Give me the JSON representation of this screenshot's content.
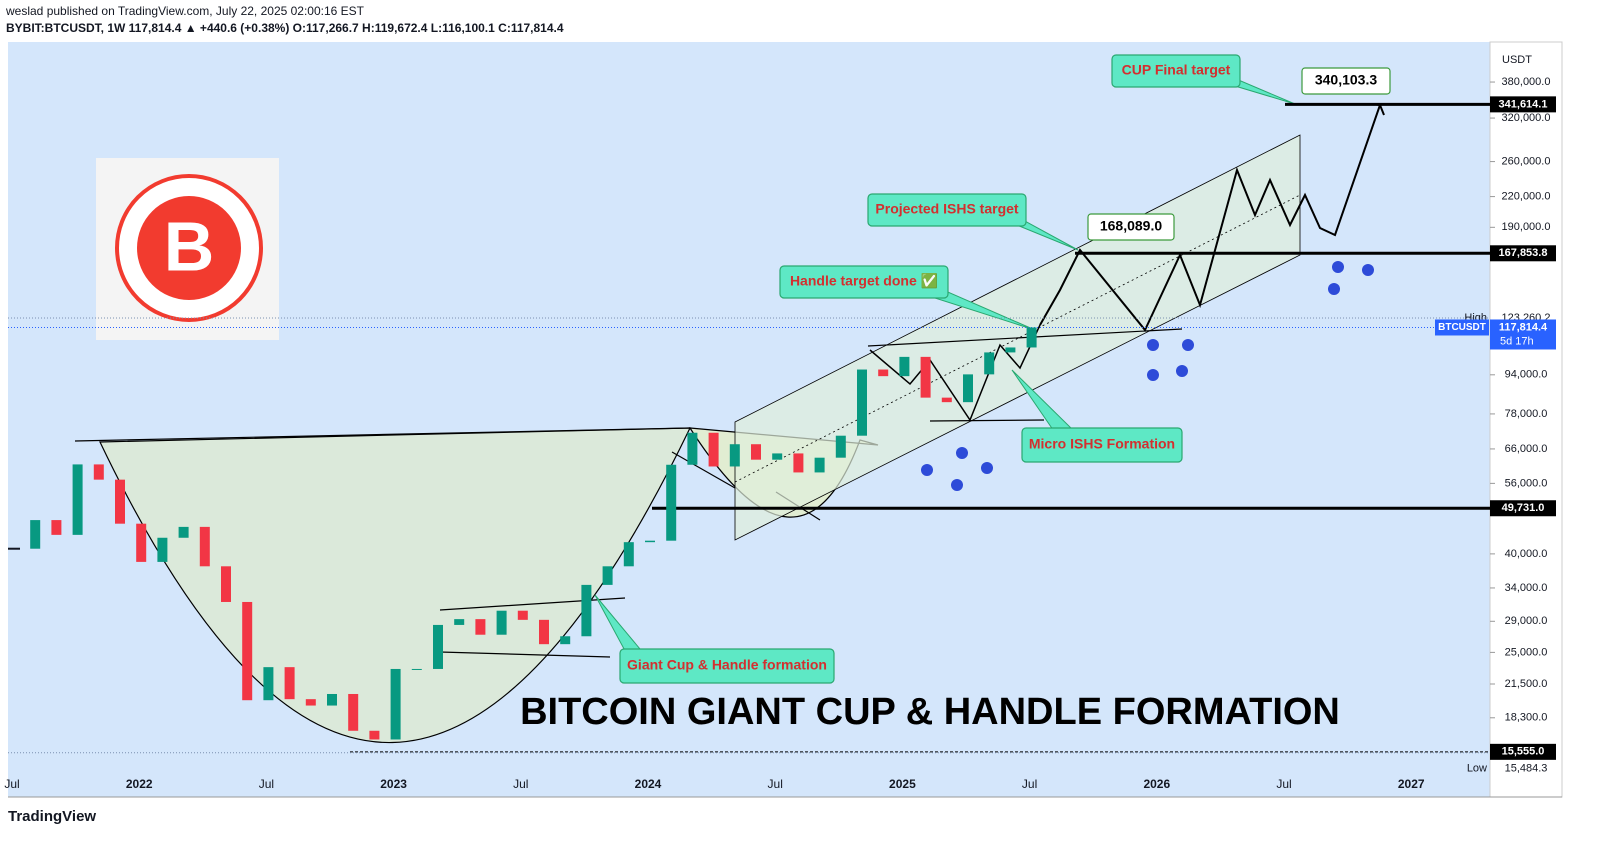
{
  "header": {
    "publisher": "weslad published on TradingView.com, July 22, 2025 02:00:16 EST",
    "symbol_line": "BYBIT:BTCUSDT, 1W  117,814.4 ▲ +440.6 (+0.38%) O:117,266.7 H:119,672.4 L:116,100.1 C:117,814.4"
  },
  "chart_data": {
    "type": "candlestick",
    "title": "BITCOIN GIANT CUP & HANDLE FORMATION",
    "log_scale": true,
    "x": [
      "2021-07",
      "2021-08",
      "2021-09",
      "2021-10",
      "2021-11",
      "2021-12",
      "2022-01",
      "2022-02",
      "2022-03",
      "2022-04",
      "2022-05",
      "2022-06",
      "2022-07",
      "2022-08",
      "2022-09",
      "2022-10",
      "2022-11",
      "2022-12",
      "2023-01",
      "2023-02",
      "2023-03",
      "2023-04",
      "2023-05",
      "2023-06",
      "2023-07",
      "2023-08",
      "2023-09",
      "2023-10",
      "2023-11",
      "2023-12",
      "2024-01",
      "2024-02",
      "2024-03",
      "2024-04",
      "2024-05",
      "2024-06",
      "2024-07",
      "2024-08",
      "2024-09",
      "2024-10",
      "2024-11",
      "2024-12",
      "2025-01",
      "2025-02",
      "2025-03",
      "2025-04",
      "2025-05",
      "2025-06",
      "2025-07"
    ],
    "values": [
      41000,
      47000,
      43800,
      61300,
      57000,
      46200,
      38500,
      43200,
      45500,
      37700,
      31800,
      19900,
      23300,
      20000,
      19400,
      20500,
      17200,
      16500,
      23100,
      23100,
      28500,
      29300,
      27200,
      30500,
      29200,
      26000,
      27000,
      34500,
      37700,
      42300,
      42600,
      61200,
      71300,
      60700,
      67500,
      62700,
      64600,
      59000,
      63300,
      70300,
      96400,
      93400,
      102400,
      84300,
      82500,
      94200,
      104600,
      107100,
      117814.4
    ],
    "up_color": "#089981",
    "down_color": "#f23645",
    "ylim": [
      12540,
      460000
    ],
    "axis_unit": "USDT",
    "yticks": [
      {
        "value": 380000,
        "label": "380,000.0"
      },
      {
        "value": 320000,
        "label": "320,000.0"
      },
      {
        "value": 260000,
        "label": "260,000.0"
      },
      {
        "value": 220000,
        "label": "220,000.0"
      },
      {
        "value": 190000,
        "label": "190,000.0"
      },
      {
        "value": 94000,
        "label": "94,000.0"
      },
      {
        "value": 78000,
        "label": "78,000.0"
      },
      {
        "value": 66000,
        "label": "66,000.0"
      },
      {
        "value": 56000,
        "label": "56,000.0"
      },
      {
        "value": 40000,
        "label": "40,000.0"
      },
      {
        "value": 34000,
        "label": "34,000.0"
      },
      {
        "value": 29000,
        "label": "29,000.0"
      },
      {
        "value": 25000,
        "label": "25,000.0"
      },
      {
        "value": 21500,
        "label": "21,500.0"
      },
      {
        "value": 18300,
        "label": "18,300.0"
      }
    ],
    "xtick_labels": [
      "Jul",
      "2022",
      "Jul",
      "2023",
      "Jul",
      "2024",
      "Jul",
      "2025",
      "Jul",
      "2026",
      "Jul",
      "2027"
    ],
    "levels": [
      {
        "value": 341614.1,
        "label": "341,614.1"
      },
      {
        "value": 167853.8,
        "label": "167,853.8"
      },
      {
        "value": 49731,
        "label": "49,731.0"
      },
      {
        "value": 15555,
        "label": "15,555.0"
      }
    ],
    "high": {
      "name": "High",
      "value": 123260.2,
      "label": "123,260.2"
    },
    "low": {
      "name": "Low",
      "value": 15484.3,
      "label": "15,484.3"
    },
    "last": {
      "name": "BTCUSDT",
      "value": 117814.4,
      "label": "117,814.4",
      "countdown": "5d 17h"
    },
    "annotations": [
      "CUP Final target",
      "340,103.3",
      "Projected ISHS target",
      "168,089.0",
      "Handle target done ✅",
      "Micro ISHS Formation",
      "Giant Cup & Handle formation"
    ]
  },
  "footer": {
    "brand": "TradingView"
  }
}
